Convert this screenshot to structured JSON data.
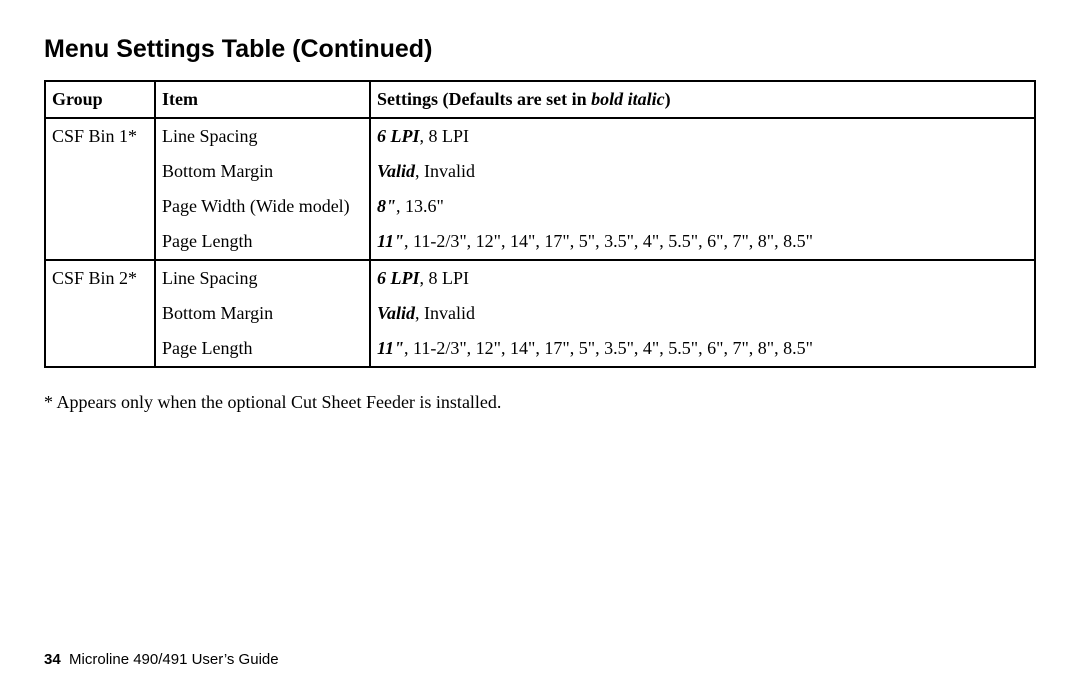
{
  "title": "Menu Settings Table (Continued)",
  "headers": {
    "group": "Group",
    "item": "Item",
    "settings_prefix": "Settings (Defaults are set in ",
    "settings_emph": "bold italic",
    "settings_suffix": ")"
  },
  "groups": [
    {
      "name": "CSF Bin 1*",
      "rows": [
        {
          "item": "Line Spacing",
          "default": "6 LPI",
          "rest": ", 8 LPI"
        },
        {
          "item": "Bottom Margin",
          "default": "Valid",
          "rest": ", Invalid"
        },
        {
          "item": "Page Width (Wide model)",
          "default": "8\"",
          "rest": ", 13.6\""
        },
        {
          "item": "Page Length",
          "default": "11\"",
          "rest": ", 11-2/3\", 12\", 14\", 17\", 5\", 3.5\", 4\", 5.5\", 6\", 7\", 8\", 8.5\""
        }
      ]
    },
    {
      "name": "CSF Bin 2*",
      "rows": [
        {
          "item": "Line Spacing",
          "default": "6 LPI",
          "rest": ", 8 LPI"
        },
        {
          "item": "Bottom Margin",
          "default": "Valid",
          "rest": ", Invalid"
        },
        {
          "item": "Page Length",
          "default": "11\"",
          "rest": ", 11-2/3\", 12\", 14\", 17\", 5\", 3.5\", 4\", 5.5\", 6\", 7\", 8\", 8.5\""
        }
      ]
    }
  ],
  "footnote": "* Appears only when the optional Cut Sheet Feeder is installed.",
  "footer": {
    "page_number": "34",
    "doc_title": "Microline 490/491 User’s Guide"
  }
}
